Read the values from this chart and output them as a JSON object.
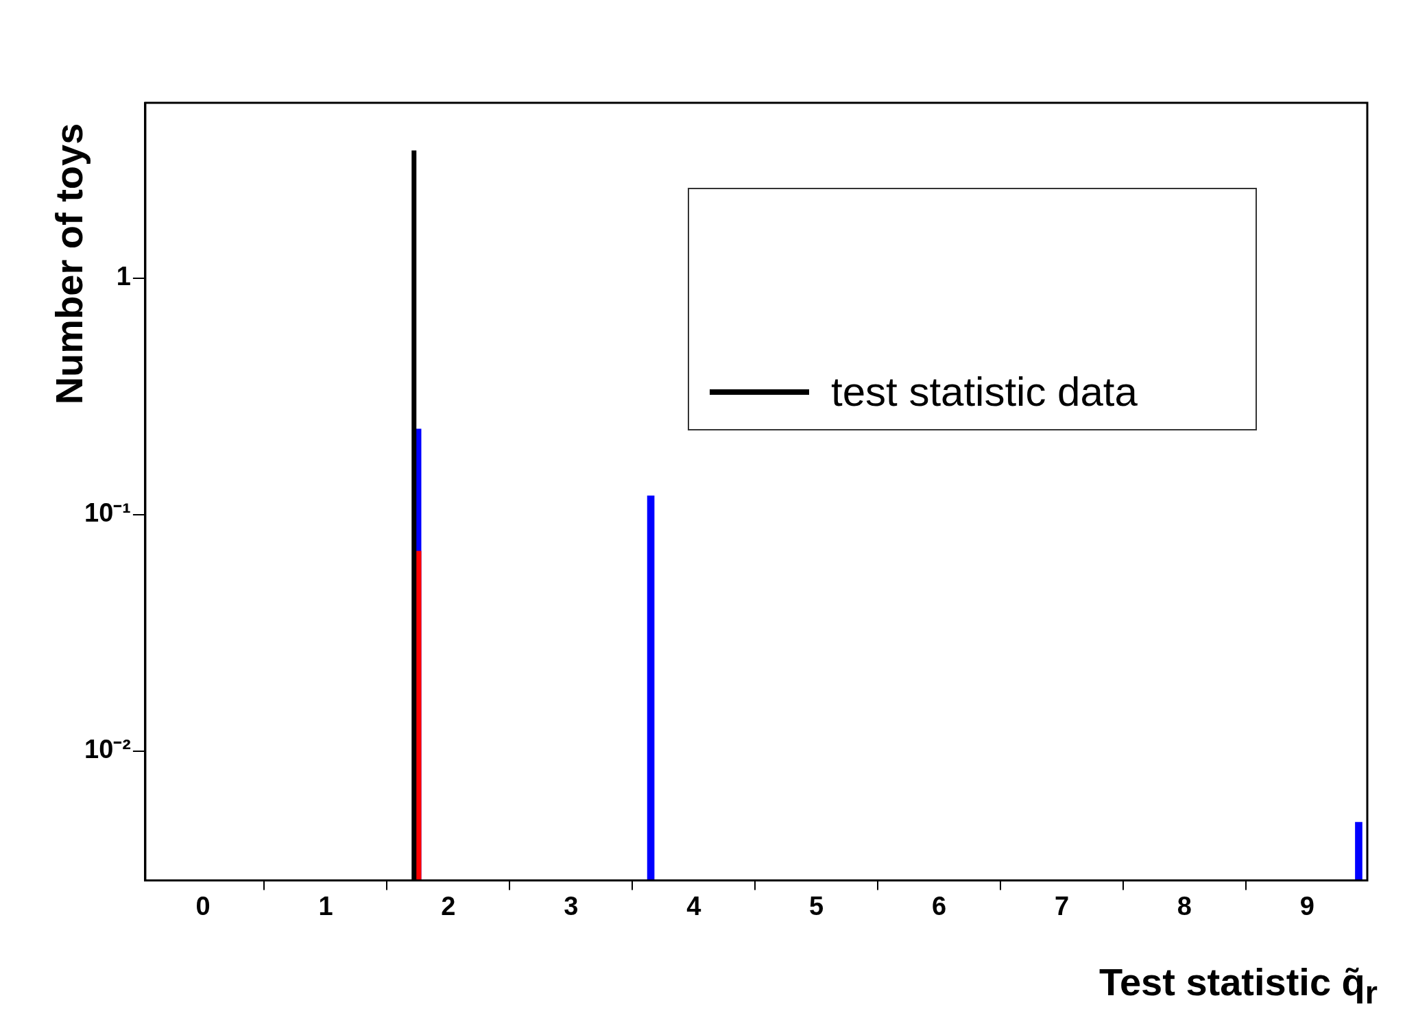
{
  "chart_data": {
    "type": "bar",
    "xlabel": "Test statistic q̃$_{r}$",
    "ylabel": "Number of toys",
    "log": "y",
    "grid": false,
    "legend": "top right",
    "xlim": [
      -0.47,
      9.49
    ],
    "xticks": [
      0,
      1,
      2,
      3,
      4,
      5,
      6,
      7,
      8,
      9
    ],
    "ylim": [
      0.00284,
      5.5
    ],
    "yticks": [
      {
        "value": 0.01,
        "label": "10⁻²"
      },
      {
        "value": 0.1,
        "label": "10⁻¹"
      },
      {
        "value": 1,
        "label": "1"
      }
    ],
    "series": [
      {
        "color": "#0000ff",
        "x": [
          1.75,
          3.65,
          9.42
        ],
        "values": [
          0.23,
          0.12,
          0.005
        ]
      },
      {
        "color": "#ff0000",
        "x": [
          1.75
        ],
        "values": [
          0.07
        ]
      },
      {
        "type": "line",
        "name": "test statistic data",
        "color": "#000000",
        "x": [
          1.72,
          1.72
        ],
        "values": [
          0.00284,
          3.46
        ]
      }
    ]
  }
}
